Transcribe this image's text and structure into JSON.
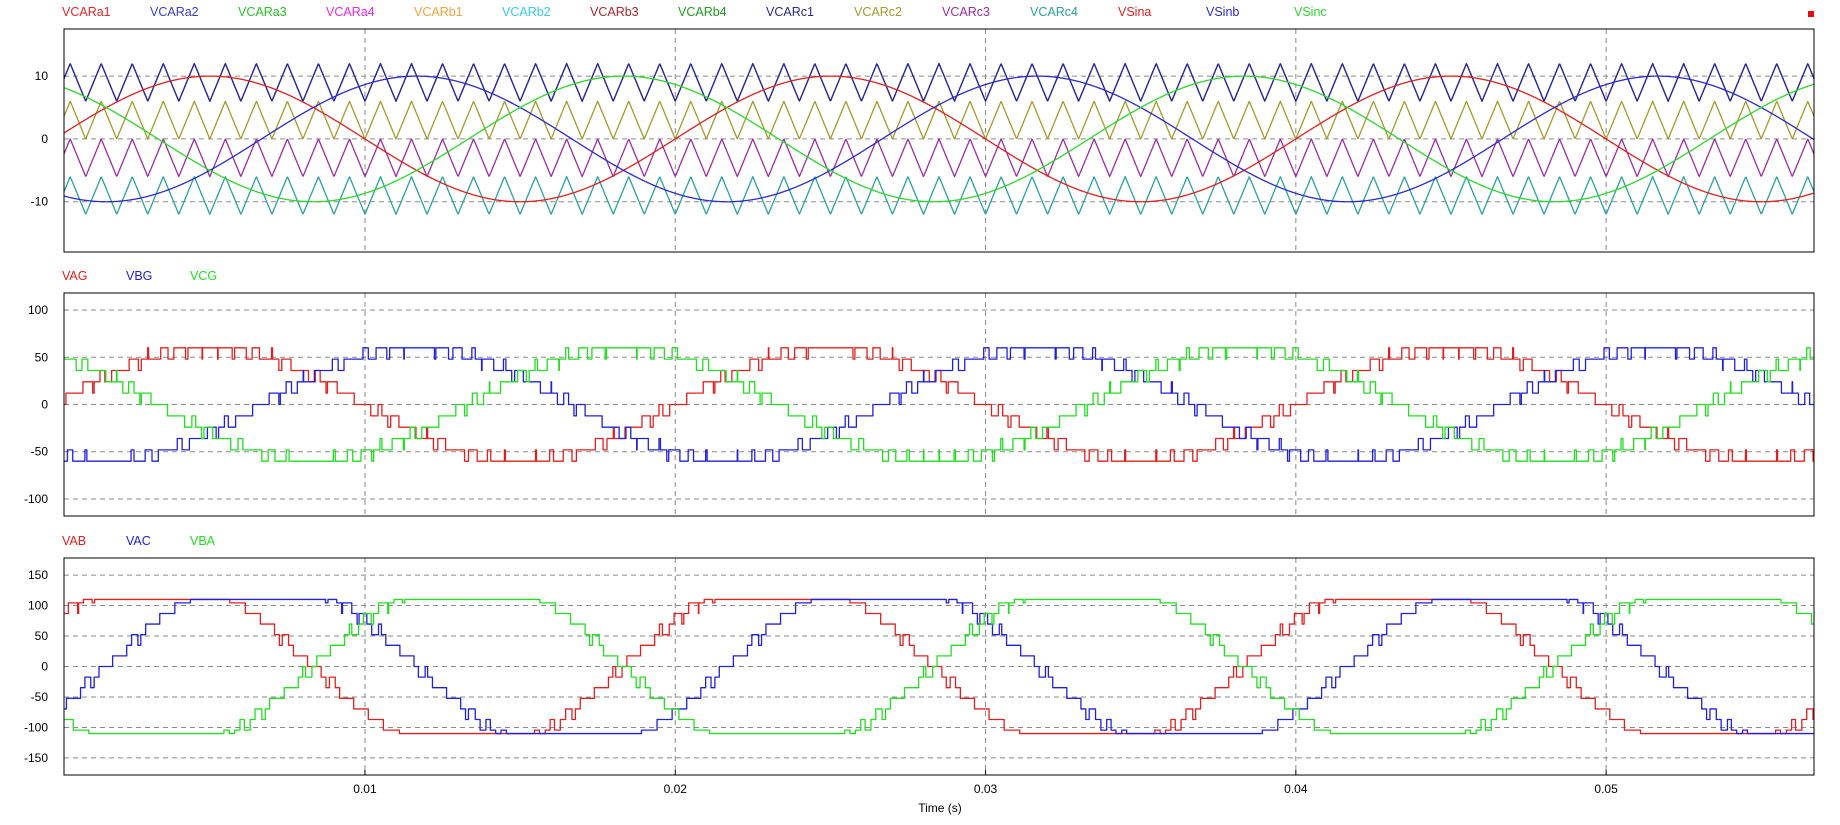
{
  "chart_data": [
    {
      "type": "line",
      "title": "",
      "xlabel": "",
      "ylabel": "",
      "xlim": [
        0.0003,
        0.0567
      ],
      "ylim": [
        -18,
        17.5
      ],
      "yticks": [
        10,
        0,
        -10
      ],
      "grid": true,
      "legend_position": "top-left",
      "carrier_frequency_hz": 1000,
      "modulation_frequency_hz": 50,
      "series": [
        {
          "name": "VCARa1",
          "color": "#e8262b",
          "kind": "triangle",
          "min": 5,
          "max": 10,
          "visible": false
        },
        {
          "name": "VCARa2",
          "color": "#3b3bd6",
          "kind": "triangle",
          "min": 6,
          "max": 12,
          "visible": true
        },
        {
          "name": "VCARa3",
          "color": "#27c227",
          "kind": "triangle",
          "min": 0,
          "max": 5,
          "visible": false
        },
        {
          "name": "VCARa4",
          "color": "#e629e6",
          "kind": "triangle",
          "min": -5,
          "max": 0,
          "visible": false
        },
        {
          "name": "VCARb1",
          "color": "#f5a23a",
          "kind": "triangle",
          "min": 5,
          "max": 10,
          "visible": false
        },
        {
          "name": "VCARb2",
          "color": "#36c9ee",
          "kind": "triangle",
          "min": 0,
          "max": 5,
          "visible": false
        },
        {
          "name": "VCARb3",
          "color": "#a8282b",
          "kind": "triangle",
          "min": 5,
          "max": 10,
          "visible": false
        },
        {
          "name": "VCARb4",
          "color": "#239a23",
          "kind": "triangle",
          "min": -12,
          "max": -6,
          "visible": false
        },
        {
          "name": "VCARc1",
          "color": "#2a2a8e",
          "kind": "triangle",
          "min": 6,
          "max": 12,
          "visible": true
        },
        {
          "name": "VCARc2",
          "color": "#a39a2c",
          "kind": "triangle",
          "min": 0,
          "max": 6,
          "visible": true
        },
        {
          "name": "VCARc3",
          "color": "#9a2ea0",
          "kind": "triangle",
          "min": -6,
          "max": 0,
          "visible": true
        },
        {
          "name": "VCARc4",
          "color": "#2aa0a0",
          "kind": "triangle",
          "min": -12,
          "max": -6,
          "visible": true
        },
        {
          "name": "VSina",
          "color": "#e02020",
          "kind": "sine",
          "amplitude": 10,
          "phase_deg": 0,
          "visible": true
        },
        {
          "name": "VSinb",
          "color": "#2b2bcc",
          "kind": "sine",
          "amplitude": 10,
          "phase_deg": -120,
          "visible": true
        },
        {
          "name": "VSinc",
          "color": "#2ed62e",
          "kind": "sine",
          "amplitude": 10,
          "phase_deg": 120,
          "visible": true
        }
      ]
    },
    {
      "type": "line",
      "title": "",
      "xlabel": "",
      "ylabel": "",
      "xlim": [
        0.0003,
        0.0567
      ],
      "ylim": [
        -118,
        118
      ],
      "yticks": [
        100,
        50,
        0,
        -50,
        -100
      ],
      "grid": true,
      "legend_position": "top-left",
      "step_size": 12,
      "series": [
        {
          "name": "VAG",
          "color": "#e02020",
          "kind": "multilevel",
          "amplitude": 60,
          "phase_deg": 0
        },
        {
          "name": "VBG",
          "color": "#2020dd",
          "kind": "multilevel",
          "amplitude": 60,
          "phase_deg": -120
        },
        {
          "name": "VCG",
          "color": "#22dd22",
          "kind": "multilevel",
          "amplitude": 60,
          "phase_deg": 120
        }
      ]
    },
    {
      "type": "line",
      "title": "",
      "xlabel": "Time (s)",
      "ylabel": "",
      "xlim": [
        0.0003,
        0.0567
      ],
      "ylim": [
        -178,
        178
      ],
      "yticks": [
        150,
        100,
        50,
        0,
        -50,
        -100,
        -150
      ],
      "xticks": [
        0.01,
        0.02,
        0.03,
        0.04,
        0.05
      ],
      "xtick_labels": [
        "0.01",
        "0.02",
        "0.03",
        "0.04",
        "0.05"
      ],
      "grid": true,
      "legend_position": "top-left",
      "step_size": 12,
      "series": [
        {
          "name": "VAB",
          "color": "#e02020",
          "kind": "line-voltage",
          "amplitude": 104,
          "phase_deg": 30
        },
        {
          "name": "VAC",
          "color": "#2020dd",
          "kind": "line-voltage",
          "amplitude": 104,
          "phase_deg": -30
        },
        {
          "name": "VBA",
          "color": "#22dd22",
          "kind": "line-voltage",
          "amplitude": 104,
          "phase_deg": -150
        }
      ]
    }
  ]
}
